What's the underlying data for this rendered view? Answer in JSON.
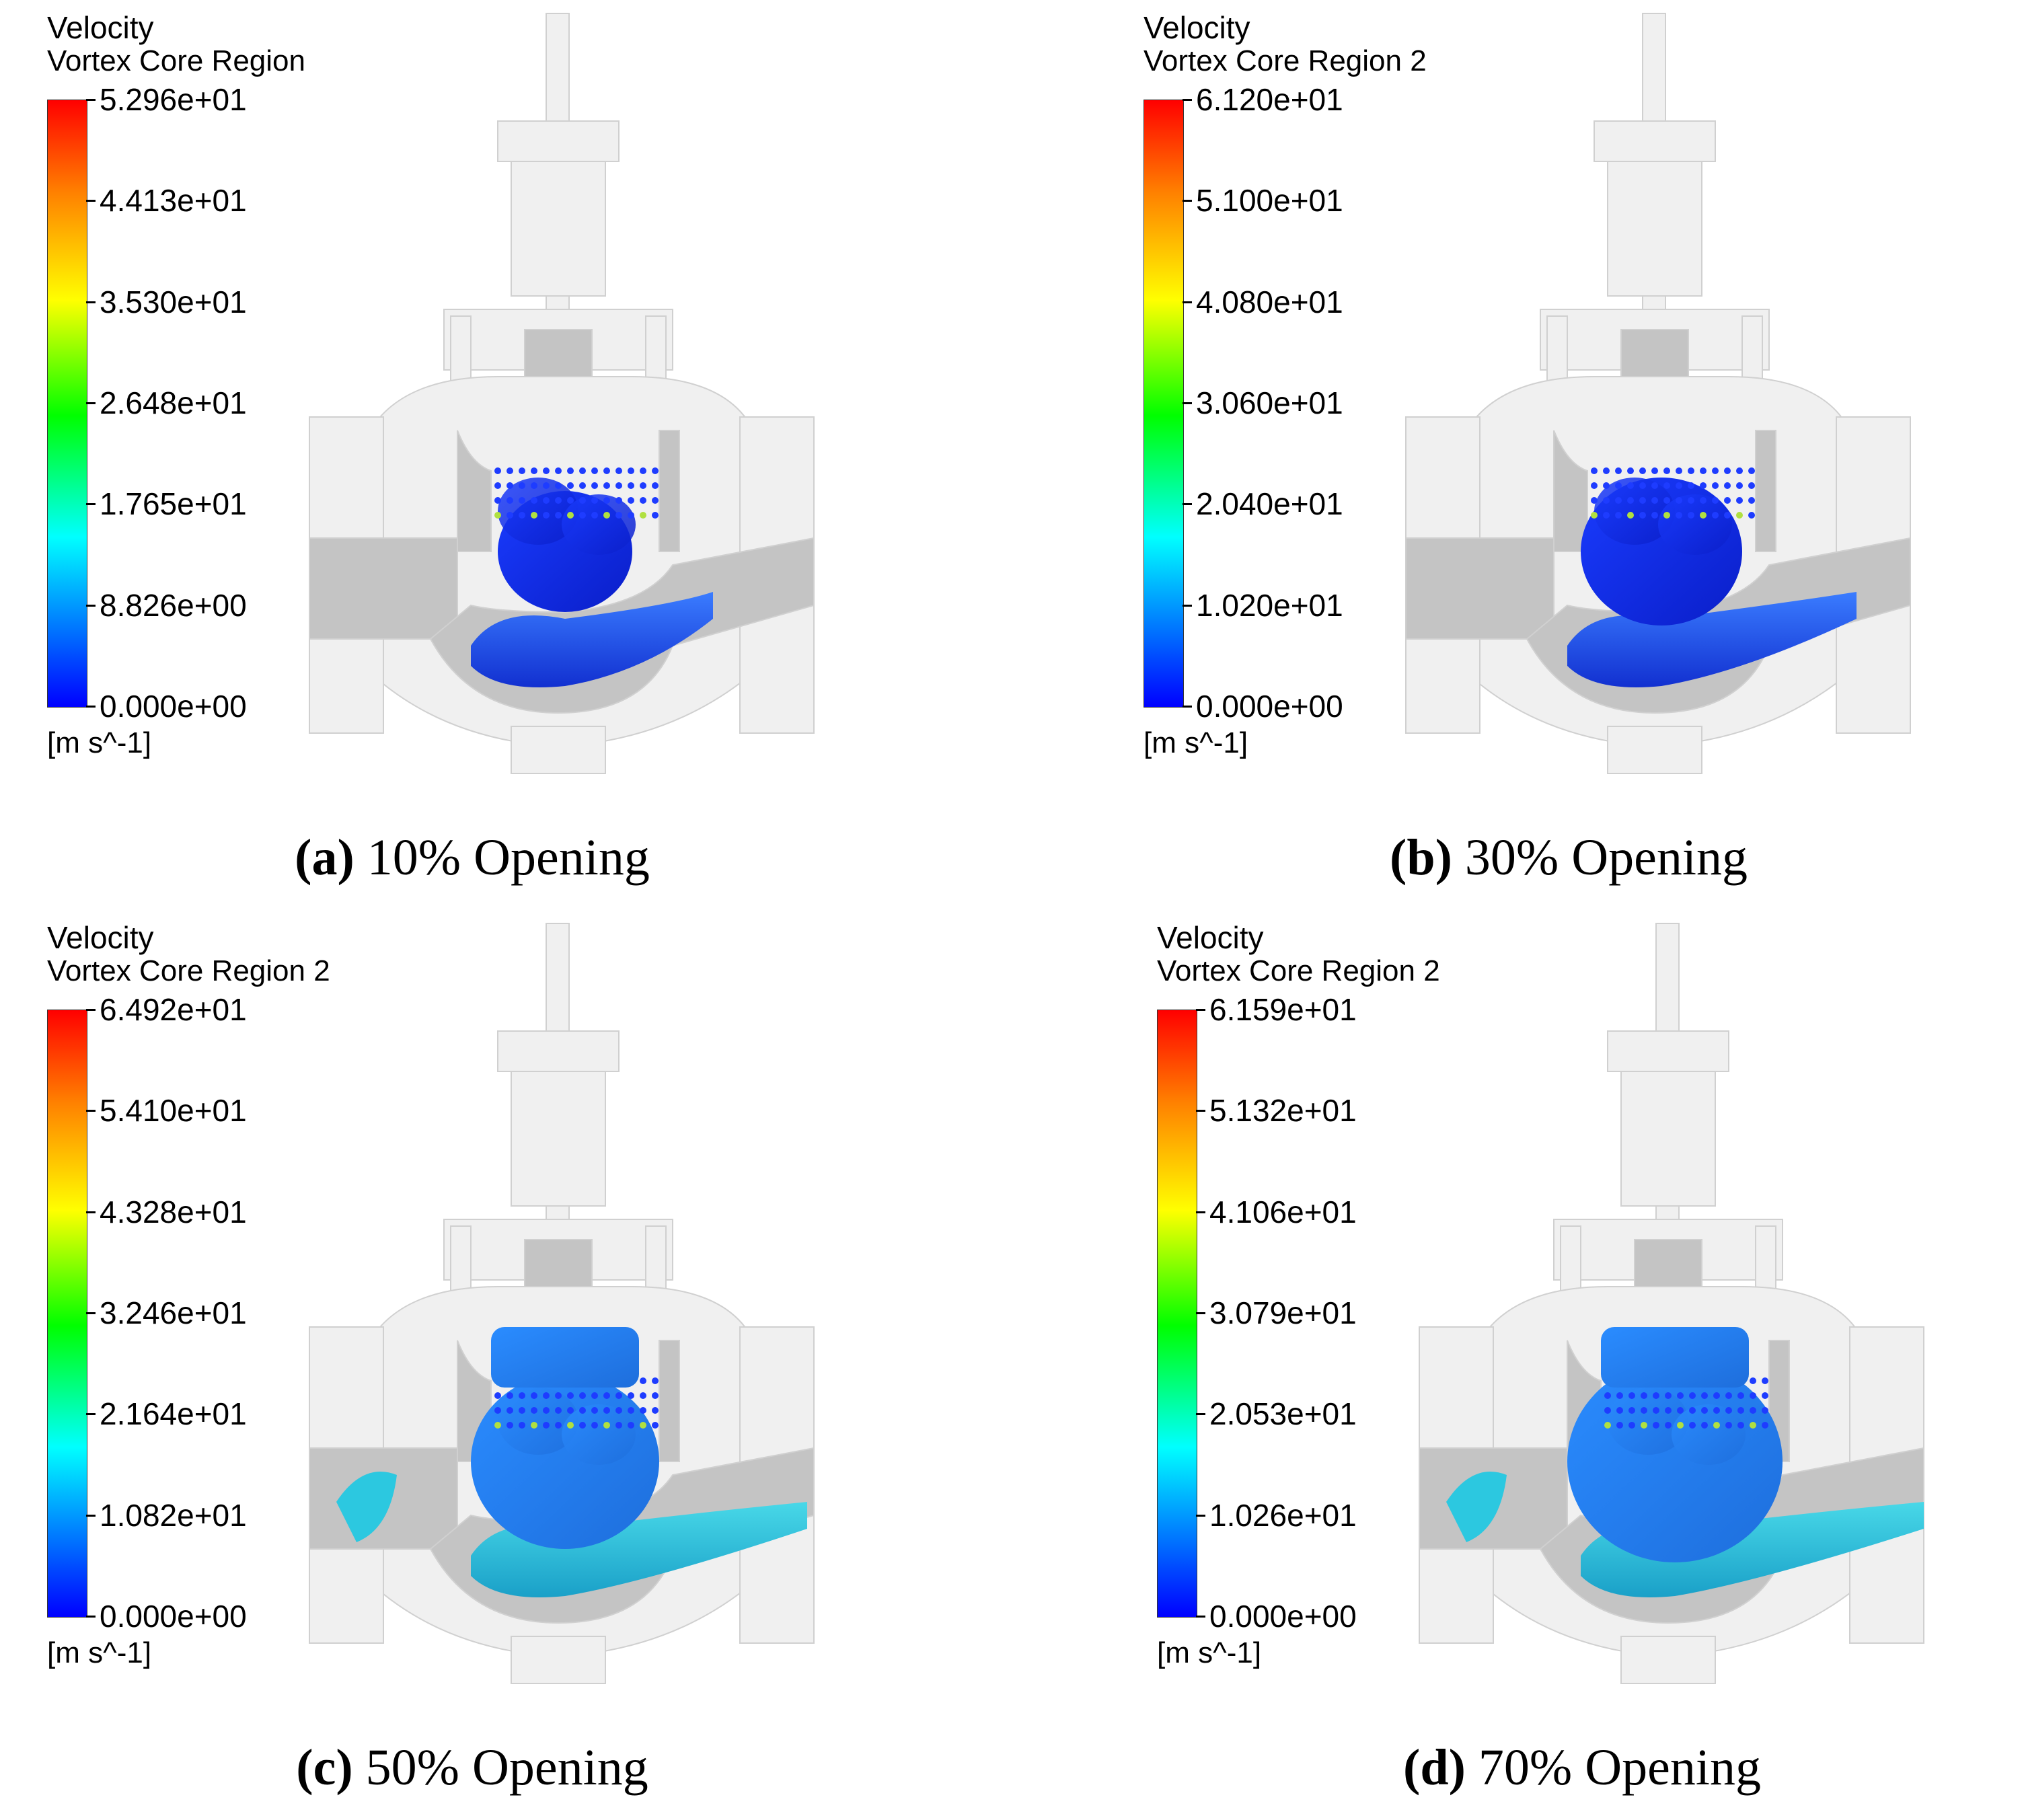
{
  "panels": [
    {
      "variable": "Velocity",
      "location": "Vortex Core Region",
      "ticks": [
        "5.296e+01",
        "4.413e+01",
        "3.530e+01",
        "2.648e+01",
        "1.765e+01",
        "8.826e+00",
        "0.000e+00"
      ],
      "units": "[m s^-1]",
      "caption_letter": "(a)",
      "caption_text": "10% Opening"
    },
    {
      "variable": "Velocity",
      "location": "Vortex Core Region 2",
      "ticks": [
        "6.120e+01",
        "5.100e+01",
        "4.080e+01",
        "3.060e+01",
        "2.040e+01",
        "1.020e+01",
        "0.000e+00"
      ],
      "units": "[m s^-1]",
      "caption_letter": "(b)",
      "caption_text": "30% Opening"
    },
    {
      "variable": "Velocity",
      "location": "Vortex Core Region 2",
      "ticks": [
        "6.492e+01",
        "5.410e+01",
        "4.328e+01",
        "3.246e+01",
        "2.164e+01",
        "1.082e+01",
        "0.000e+00"
      ],
      "units": "[m s^-1]",
      "caption_letter": "(c)",
      "caption_text": "50% Opening"
    },
    {
      "variable": "Velocity",
      "location": "Vortex Core Region 2",
      "ticks": [
        "6.159e+01",
        "5.132e+01",
        "4.106e+01",
        "3.079e+01",
        "2.053e+01",
        "1.026e+01",
        "0.000e+00"
      ],
      "units": "[m s^-1]",
      "caption_letter": "(d)",
      "caption_text": "70% Opening"
    }
  ],
  "colormap": [
    "#ff0000",
    "#ff7f00",
    "#ffff00",
    "#00ff00",
    "#00ffff",
    "#0080ff",
    "#0000ff"
  ],
  "geometry_colors": {
    "body": "#f0f0f0",
    "section": "#c4c4c4",
    "edge": "#d0d0d0"
  }
}
